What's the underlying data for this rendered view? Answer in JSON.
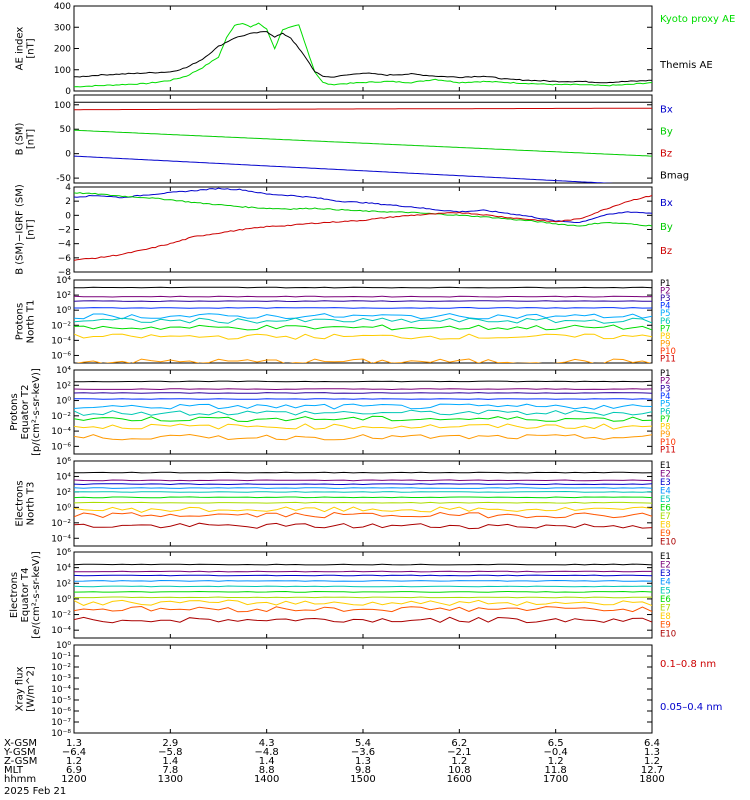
{
  "chart_data": [
    {
      "id": "ae",
      "type": "line",
      "ylabel": [
        "AE index",
        "[nT]"
      ],
      "yticks": [
        "400",
        "300",
        "200",
        "100",
        "0"
      ],
      "ylim": [
        0,
        400
      ],
      "legend": [
        "Kyoto proxy AE",
        "Themis AE"
      ],
      "series": [
        {
          "name": "Kyoto proxy AE",
          "color": "#00dd00",
          "x": [
            "12:00",
            "12:15",
            "12:30",
            "12:45",
            "13:00",
            "13:10",
            "13:20",
            "13:30",
            "13:35",
            "13:40",
            "13:45",
            "13:50",
            "13:55",
            "14:00",
            "14:05",
            "14:10",
            "14:15",
            "14:20",
            "14:25",
            "14:30",
            "14:35",
            "14:40",
            "14:50",
            "15:00",
            "15:15",
            "15:30",
            "15:45",
            "16:00",
            "16:15",
            "16:30",
            "16:45",
            "17:00",
            "17:15",
            "17:30",
            "17:45",
            "18:00"
          ],
          "y": [
            20,
            25,
            30,
            35,
            50,
            70,
            110,
            160,
            250,
            310,
            320,
            300,
            320,
            290,
            200,
            290,
            300,
            310,
            200,
            90,
            40,
            30,
            35,
            40,
            45,
            40,
            55,
            40,
            45,
            40,
            35,
            30,
            30,
            25,
            30,
            40
          ]
        },
        {
          "name": "Themis AE",
          "color": "#000000",
          "x": [
            "12:00",
            "12:15",
            "12:30",
            "12:45",
            "13:00",
            "13:10",
            "13:20",
            "13:30",
            "13:40",
            "13:50",
            "14:00",
            "14:05",
            "14:10",
            "14:15",
            "14:20",
            "14:25",
            "14:30",
            "14:35",
            "14:40",
            "14:50",
            "15:00",
            "15:15",
            "15:30",
            "15:45",
            "16:00",
            "16:15",
            "16:30",
            "16:45",
            "17:00",
            "17:15",
            "17:30",
            "17:45",
            "18:00"
          ],
          "y": [
            65,
            75,
            80,
            85,
            90,
            110,
            150,
            210,
            250,
            270,
            280,
            255,
            270,
            250,
            200,
            150,
            90,
            70,
            65,
            75,
            85,
            75,
            80,
            70,
            65,
            70,
            55,
            50,
            45,
            45,
            40,
            45,
            50
          ]
        }
      ]
    },
    {
      "id": "b_sm",
      "type": "line",
      "ylabel": [
        "B (SM)",
        "[nT]"
      ],
      "yticks": [
        "100",
        "50",
        "0",
        "-50"
      ],
      "ylim": [
        -60,
        120
      ],
      "legend": [
        "Bx",
        "By",
        "Bz",
        "Bmag"
      ],
      "series": [
        {
          "name": "Bx",
          "color": "#0000cc",
          "x": [
            "12:00",
            "18:00"
          ],
          "y": [
            -5,
            -65
          ]
        },
        {
          "name": "By",
          "color": "#00cc00",
          "x": [
            "12:00",
            "18:00"
          ],
          "y": [
            48,
            -5
          ]
        },
        {
          "name": "Bz",
          "color": "#cc0000",
          "x": [
            "12:00",
            "18:00"
          ],
          "y": [
            90,
            93
          ]
        },
        {
          "name": "Bmag",
          "color": "#000000",
          "x": [
            "12:00",
            "18:00"
          ],
          "y": [
            105,
            105
          ]
        }
      ]
    },
    {
      "id": "db_sm",
      "type": "line",
      "ylabel": [
        "B (SM)−IGRF (SM)",
        "[nT]"
      ],
      "yticks": [
        "4",
        "2",
        "0",
        "−2",
        "−4",
        "−6",
        "−8"
      ],
      "ylim": [
        -8,
        4
      ],
      "legend": [
        "Bx",
        "By",
        "Bz"
      ],
      "series": [
        {
          "name": "Bx",
          "color": "#0000cc",
          "x": [
            "12:00",
            "12:15",
            "12:30",
            "12:45",
            "13:00",
            "13:15",
            "13:30",
            "13:45",
            "14:00",
            "14:15",
            "14:30",
            "14:45",
            "15:00",
            "15:15",
            "15:30",
            "15:45",
            "16:00",
            "16:15",
            "16:30",
            "16:45",
            "17:00",
            "17:15",
            "17:30",
            "17:45",
            "18:00"
          ],
          "y": [
            2.6,
            2.8,
            2.5,
            2.9,
            3.2,
            3.5,
            3.8,
            3.6,
            3.0,
            2.8,
            2.5,
            2.0,
            1.8,
            1.5,
            1.2,
            0.8,
            0.5,
            0.7,
            0.3,
            -0.2,
            -0.8,
            -1.0,
            0.0,
            0.5,
            0.3
          ]
        },
        {
          "name": "By",
          "color": "#00cc00",
          "x": [
            "12:00",
            "12:15",
            "12:30",
            "12:45",
            "13:00",
            "13:15",
            "13:30",
            "13:45",
            "14:00",
            "14:15",
            "14:30",
            "14:45",
            "15:00",
            "15:15",
            "15:30",
            "15:45",
            "16:00",
            "16:15",
            "16:30",
            "16:45",
            "17:00",
            "17:15",
            "17:30",
            "17:45",
            "18:00"
          ],
          "y": [
            3.2,
            3.0,
            2.7,
            2.5,
            2.2,
            1.8,
            1.5,
            1.2,
            1.0,
            0.9,
            1.0,
            0.8,
            0.6,
            0.5,
            0.4,
            0.2,
            0.0,
            -0.2,
            -0.5,
            -0.8,
            -1.2,
            -1.5,
            -1.0,
            -1.2,
            -1.5
          ]
        },
        {
          "name": "Bz",
          "color": "#cc0000",
          "x": [
            "12:00",
            "12:15",
            "12:30",
            "12:45",
            "13:00",
            "13:15",
            "13:30",
            "13:45",
            "14:00",
            "14:15",
            "14:30",
            "14:45",
            "15:00",
            "15:15",
            "15:30",
            "15:45",
            "16:00",
            "16:15",
            "16:30",
            "16:45",
            "17:00",
            "17:15",
            "17:30",
            "17:45",
            "18:00"
          ],
          "y": [
            -6.3,
            -6.0,
            -5.5,
            -4.8,
            -4.0,
            -3.0,
            -2.5,
            -2.0,
            -1.6,
            -1.4,
            -1.1,
            -0.9,
            -0.7,
            -0.3,
            0.0,
            0.2,
            0.4,
            0.1,
            -0.3,
            -0.6,
            -0.9,
            -0.5,
            0.8,
            2.0,
            2.8
          ]
        }
      ]
    },
    {
      "id": "protons_t1",
      "type": "line",
      "ylog": true,
      "ylabel": [
        "Protons",
        "North T1"
      ],
      "yticks": [
        "10⁴",
        "10²",
        "10⁰",
        "10⁻²",
        "10⁻⁴",
        "10⁻⁶"
      ],
      "ylim_exp": [
        -7,
        4
      ],
      "legend": [
        "P1",
        "P2",
        "P3",
        "P4",
        "P5",
        "P6",
        "P7",
        "P8",
        "P9",
        "P10",
        "P11"
      ],
      "series": [
        {
          "name": "P1",
          "color": "#000000",
          "level": 3.0
        },
        {
          "name": "P2",
          "color": "#7a007a",
          "level": 1.8
        },
        {
          "name": "P3",
          "color": "#2a00a0",
          "level": 1.2
        },
        {
          "name": "P4",
          "color": "#0030ff",
          "level": 0.3
        },
        {
          "name": "P5",
          "color": "#00aaff",
          "level": -0.8
        },
        {
          "name": "P6",
          "color": "#00c8b4",
          "level": -1.4
        },
        {
          "name": "P7",
          "color": "#00dd00",
          "level": -2.3
        },
        {
          "name": "P8",
          "color": "#ffcc00",
          "level": -3.5
        },
        {
          "name": "P9",
          "color": "#ff9900",
          "level": -6.8
        },
        {
          "name": "P10",
          "color": "#ff3300",
          "level": -7.5
        },
        {
          "name": "P11",
          "color": "#cc0000",
          "level": -8.0
        }
      ]
    },
    {
      "id": "protons_t2",
      "type": "line",
      "ylog": true,
      "ylabel": [
        "Protons",
        "Equator T2",
        "[p/(cm²-s-sr-keV)]"
      ],
      "yticks": [
        "10⁴",
        "10²",
        "10⁰",
        "10⁻²",
        "10⁻⁴",
        "10⁻⁶"
      ],
      "ylim_exp": [
        -7,
        4
      ],
      "legend": [
        "P1",
        "P2",
        "P3",
        "P4",
        "P5",
        "P6",
        "P7",
        "P8",
        "P9",
        "P10",
        "P11"
      ],
      "series": [
        {
          "name": "P1",
          "color": "#000000",
          "level": 2.5
        },
        {
          "name": "P2",
          "color": "#7a007a",
          "level": 1.5
        },
        {
          "name": "P3",
          "color": "#2a00a0",
          "level": 1.0
        },
        {
          "name": "P4",
          "color": "#0030ff",
          "level": 0.2
        },
        {
          "name": "P5",
          "color": "#00aaff",
          "level": -0.8
        },
        {
          "name": "P6",
          "color": "#00c8b4",
          "level": -1.6
        },
        {
          "name": "P7",
          "color": "#00dd00",
          "level": -2.4
        },
        {
          "name": "P8",
          "color": "#ffcc00",
          "level": -3.4
        },
        {
          "name": "P9",
          "color": "#ff9900",
          "level": -4.8
        },
        {
          "name": "P10",
          "color": "#ff3300",
          "level": -8.0
        },
        {
          "name": "P11",
          "color": "#cc0000",
          "level": -8.0
        }
      ]
    },
    {
      "id": "electrons_t3",
      "type": "line",
      "ylog": true,
      "ylabel": [
        "Electrons",
        "North T3"
      ],
      "yticks": [
        "10⁶",
        "10⁴",
        "10²",
        "10⁰",
        "10⁻²",
        "10⁻⁴"
      ],
      "ylim_exp": [
        -5,
        6
      ],
      "legend": [
        "E1",
        "E2",
        "E3",
        "E4",
        "E5",
        "E6",
        "E7",
        "E8",
        "E9",
        "E10"
      ],
      "series": [
        {
          "name": "E1",
          "color": "#000000",
          "level": 4.5
        },
        {
          "name": "E2",
          "color": "#7a007a",
          "level": 3.5
        },
        {
          "name": "E3",
          "color": "#0000cc",
          "level": 3.0
        },
        {
          "name": "E4",
          "color": "#0090ff",
          "level": 2.5
        },
        {
          "name": "E5",
          "color": "#00c8b4",
          "level": 2.0
        },
        {
          "name": "E6",
          "color": "#00dd00",
          "level": 1.3
        },
        {
          "name": "E7",
          "color": "#aadd00",
          "level": 0.6
        },
        {
          "name": "E8",
          "color": "#ffcc00",
          "level": -0.3
        },
        {
          "name": "E9",
          "color": "#ff5500",
          "level": -1.0
        },
        {
          "name": "E10",
          "color": "#aa0000",
          "level": -2.4
        }
      ]
    },
    {
      "id": "electrons_t4",
      "type": "line",
      "ylog": true,
      "ylabel": [
        "Electrons",
        "Equator T4",
        "[e/(cm²-s-sr-keV)]"
      ],
      "yticks": [
        "10⁶",
        "10⁴",
        "10²",
        "10⁰",
        "10⁻²",
        "10⁻⁴"
      ],
      "ylim_exp": [
        -5,
        6
      ],
      "legend": [
        "E1",
        "E2",
        "E3",
        "E4",
        "E5",
        "E6",
        "E7",
        "E8",
        "E9",
        "E10"
      ],
      "series": [
        {
          "name": "E1",
          "color": "#000000",
          "level": 4.4
        },
        {
          "name": "E2",
          "color": "#7a007a",
          "level": 3.5
        },
        {
          "name": "E3",
          "color": "#0000cc",
          "level": 3.0
        },
        {
          "name": "E4",
          "color": "#0090ff",
          "level": 2.3
        },
        {
          "name": "E5",
          "color": "#00c8b4",
          "level": 1.6
        },
        {
          "name": "E6",
          "color": "#00dd00",
          "level": 0.9
        },
        {
          "name": "E7",
          "color": "#aadd00",
          "level": 0.2
        },
        {
          "name": "E8",
          "color": "#ffcc00",
          "level": -0.5
        },
        {
          "name": "E9",
          "color": "#ff5500",
          "level": -1.3
        },
        {
          "name": "E10",
          "color": "#aa0000",
          "level": -2.7
        }
      ]
    },
    {
      "id": "xray",
      "type": "line",
      "ylog": true,
      "ylabel": [
        "Xray flux",
        "[W/m^2]"
      ],
      "yticks": [
        "10⁰",
        "10⁻¹",
        "10⁻²",
        "10⁻³",
        "10⁻⁴",
        "10⁻⁵",
        "10⁻⁶",
        "10⁻⁷",
        "10⁻⁸"
      ],
      "ylim_exp": [
        -8,
        0
      ],
      "legend": [
        "0.1–0.8 nm",
        "0.05–0.4 nm"
      ],
      "series": [
        {
          "name": "0.1–0.8 nm",
          "color": "#cc0000",
          "x": [],
          "y": []
        },
        {
          "name": "0.05–0.4 nm",
          "color": "#0000cc",
          "x": [],
          "y": []
        }
      ]
    }
  ],
  "footer": {
    "row_labels": [
      "X-GSM",
      "Y-GSM",
      "Z-GSM",
      "MLT",
      "hhmm"
    ],
    "date": "2025 Feb 21",
    "columns": [
      [
        "1.3",
        "−6.4",
        "1.2",
        "6.9",
        "1200"
      ],
      [
        "2.9",
        "−5.8",
        "1.4",
        "7.8",
        "1300"
      ],
      [
        "4.3",
        "−4.8",
        "1.4",
        "8.8",
        "1400"
      ],
      [
        "5.4",
        "−3.6",
        "1.3",
        "9.8",
        "1500"
      ],
      [
        "6.2",
        "−2.1",
        "1.2",
        "10.8",
        "1600"
      ],
      [
        "6.5",
        "−0.4",
        "1.2",
        "11.8",
        "1700"
      ],
      [
        "6.4",
        "1.3",
        "1.2",
        "12.7",
        "1800"
      ]
    ]
  }
}
